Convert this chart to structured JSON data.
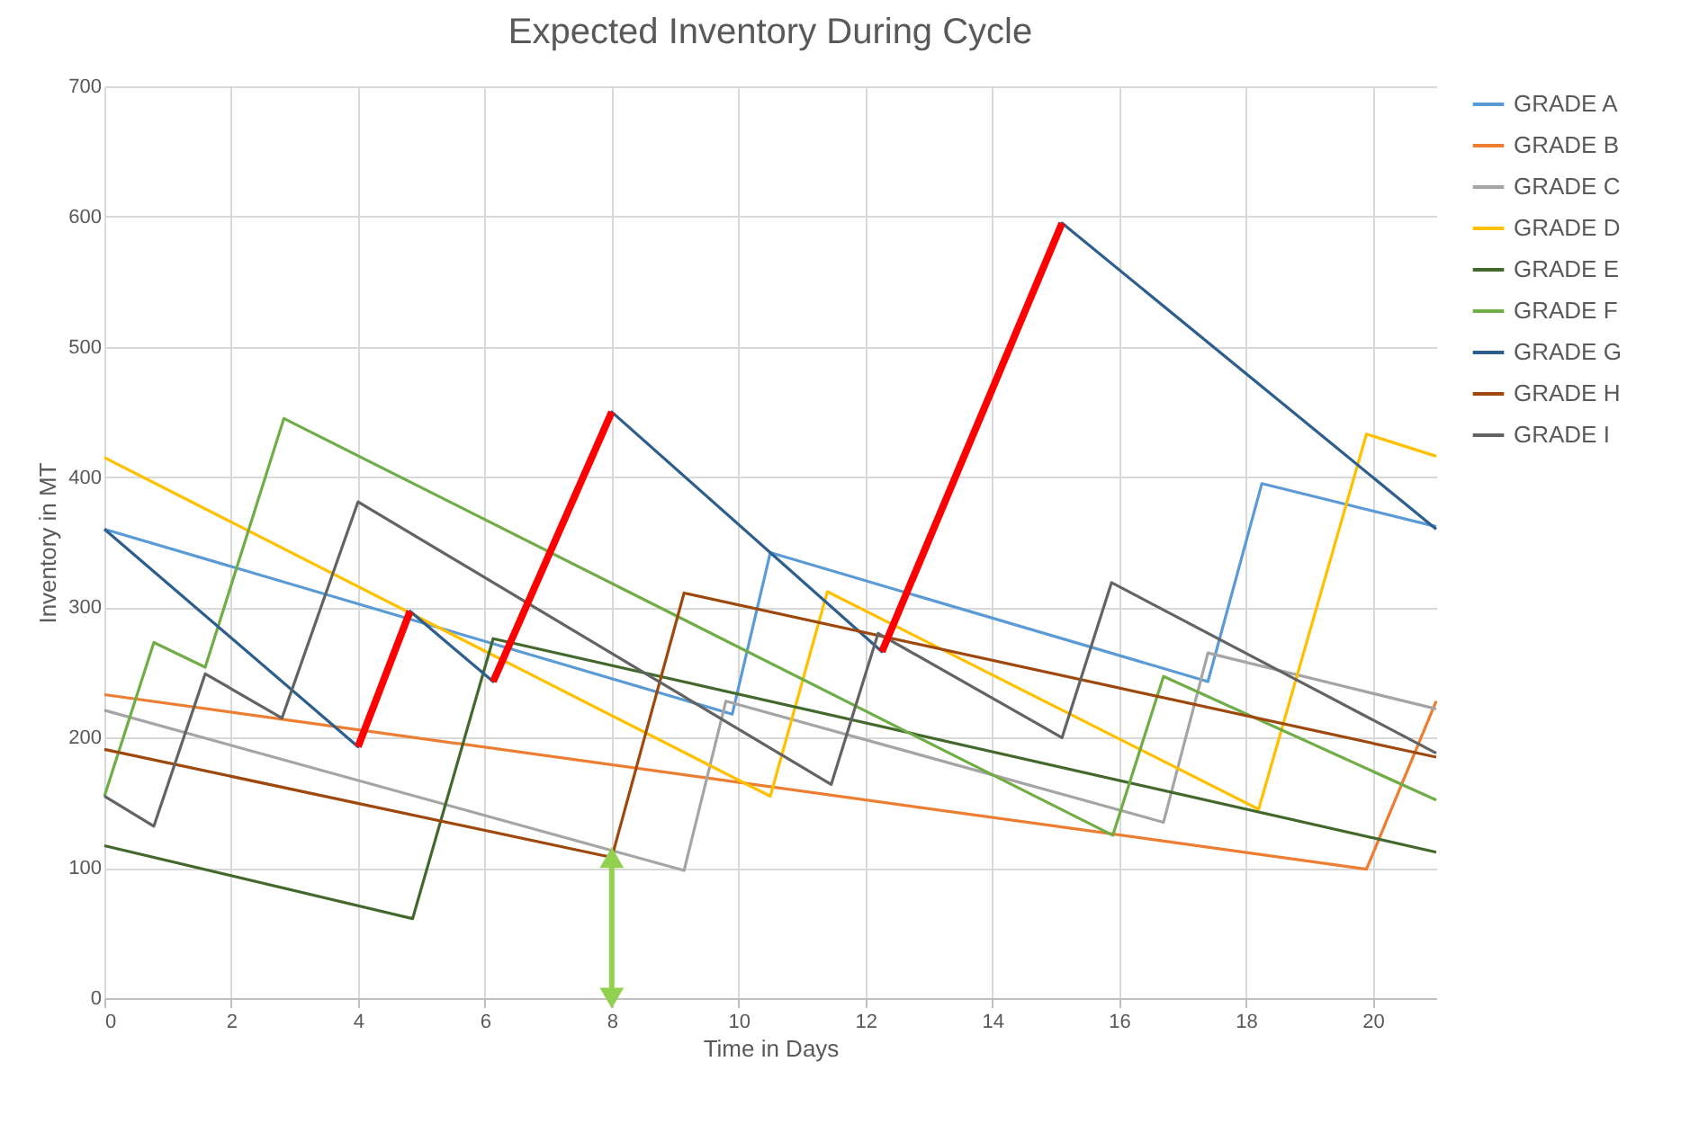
{
  "chart_data": {
    "type": "line",
    "title": "Expected Inventory During Cycle",
    "xlabel": "Time in Days",
    "ylabel": "Inventory in MT",
    "xlim": [
      0,
      21
    ],
    "xticks": [
      0,
      2,
      4,
      6,
      8,
      10,
      12,
      14,
      16,
      18,
      20
    ],
    "ylim": [
      0,
      700
    ],
    "yticks": [
      0,
      100,
      200,
      300,
      400,
      500,
      600,
      700
    ],
    "grid": true,
    "legend": "right",
    "marker": "none",
    "line_style": "solid",
    "series": [
      {
        "name": "GRADE A",
        "color": "#5b9bd5",
        "x": [
          0,
          9.9,
          10.5,
          17.4,
          18.25,
          21
        ],
        "values": [
          360,
          218,
          342,
          243,
          395,
          362
        ]
      },
      {
        "name": "GRADE B",
        "color": "#ed7d31",
        "x": [
          0,
          19.9,
          21
        ],
        "values": [
          233,
          99,
          228
        ]
      },
      {
        "name": "GRADE C",
        "color": "#a5a5a5",
        "x": [
          0,
          9.14,
          9.8,
          16.7,
          17.4,
          21
        ],
        "values": [
          221,
          98,
          228,
          135,
          265,
          222
        ]
      },
      {
        "name": "GRADE D",
        "color": "#ffc000",
        "x": [
          0,
          10.5,
          11.4,
          18.2,
          19.9,
          21
        ],
        "values": [
          415,
          155,
          312,
          145,
          433,
          416
        ]
      },
      {
        "name": "GRADE E",
        "color": "#43682b",
        "x": [
          0,
          4.86,
          6.13,
          21
        ],
        "values": [
          117,
          61,
          276,
          112
        ]
      },
      {
        "name": "GRADE F",
        "color": "#70ad47",
        "x": [
          0,
          0.78,
          1.59,
          2.83,
          15.9,
          16.7,
          21
        ],
        "values": [
          155,
          273,
          254,
          445,
          125,
          247,
          152
        ]
      },
      {
        "name": "GRADE G",
        "color": "#2e5f8c",
        "x": [
          0,
          4,
          4.82,
          6.13,
          8,
          12.26,
          15.1,
          21
        ],
        "values": [
          360,
          193,
          297,
          243,
          450,
          266,
          595,
          360
        ]
      },
      {
        "name": "GRADE H",
        "color": "#9e480e",
        "x": [
          0,
          8,
          9.14,
          21
        ],
        "values": [
          191,
          108,
          311,
          185
        ]
      },
      {
        "name": "GRADE I",
        "color": "#636363",
        "x": [
          0,
          0.78,
          1.59,
          2.8,
          4,
          11.46,
          12.2,
          15.1,
          15.88,
          21
        ],
        "values": [
          155,
          132,
          249,
          215,
          381,
          164,
          280,
          200,
          319,
          188
        ]
      },
      {
        "type": "line",
        "color": "#ff0000",
        "x": [
          4,
          4.82
        ],
        "values": [
          193,
          297
        ]
      },
      {
        "type": "line",
        "color": "#ff0000",
        "x": [
          6.13,
          8
        ],
        "values": [
          243,
          450
        ]
      },
      {
        "type": "line",
        "color": "#ff0000",
        "x": [
          12.26,
          15.1
        ],
        "values": [
          266,
          595
        ]
      }
    ]
  }
}
